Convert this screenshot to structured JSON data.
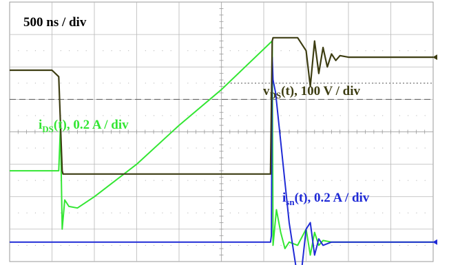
{
  "chart_data": {
    "type": "line",
    "title": "500 ns / div",
    "x_unit": "ns",
    "x_divisions": 10,
    "y_divisions": 8,
    "grid": true,
    "xlim": [
      0,
      5000
    ],
    "series": [
      {
        "id": "vds",
        "name_main": "v",
        "name_sub": "DS",
        "name_tail": "(t), 100 V / div",
        "color": "#3d3d12",
        "x": [
          0,
          500,
          580,
          620,
          630,
          640,
          1000,
          2000,
          2890,
          3080,
          3100,
          3110,
          3400,
          3500,
          3550,
          3600,
          3650,
          3700,
          3750,
          3800,
          3850,
          3900,
          4000,
          5000
        ],
        "y": [
          1.9,
          1.9,
          1.7,
          -1.2,
          -1.3,
          -1.3,
          -1.3,
          -1.3,
          -1.3,
          -1.3,
          2.8,
          2.9,
          2.9,
          2.5,
          1.4,
          2.8,
          1.8,
          2.6,
          2.0,
          2.4,
          2.2,
          2.35,
          2.3,
          2.3
        ]
      },
      {
        "id": "ids",
        "name_main": "i",
        "name_sub": "DS",
        "name_tail": "(t), 0.2 A / div",
        "color": "#33e633",
        "x": [
          0,
          580,
          600,
          620,
          650,
          700,
          800,
          1000,
          1500,
          2000,
          2500,
          3080,
          3100,
          3110,
          3150,
          3200,
          3250,
          3300,
          3400,
          3500,
          3550,
          3600,
          3650,
          3700,
          3800,
          4000,
          5000
        ],
        "y": [
          -1.2,
          -1.2,
          0.2,
          -3.0,
          -2.1,
          -2.3,
          -2.35,
          -2.0,
          -1.0,
          0.2,
          1.3,
          2.75,
          2.8,
          -3.5,
          -2.4,
          -3.1,
          -3.6,
          -3.4,
          -3.5,
          -3.0,
          -3.8,
          -3.1,
          -3.5,
          -3.35,
          -3.4,
          -3.4,
          -3.4
        ]
      },
      {
        "id": "isn",
        "name_main": "i",
        "name_sub": "sn",
        "name_tail": "(t), 0.2 A / div",
        "color": "#1f2ad6",
        "x": [
          0,
          3080,
          3090,
          3100,
          3110,
          3140,
          3200,
          3300,
          3400,
          3450,
          3500,
          3550,
          3600,
          3650,
          3700,
          3800,
          4000,
          5000
        ],
        "y": [
          -3.4,
          -3.4,
          -3.2,
          2.3,
          1.6,
          1.2,
          -0.3,
          -2.8,
          -4.5,
          -4.2,
          -3.0,
          -2.8,
          -3.8,
          -3.3,
          -3.5,
          -3.4,
          -3.4,
          -3.4
        ]
      }
    ],
    "ref_dashed_y": 1.0,
    "ref_dotted_y": 1.5
  }
}
